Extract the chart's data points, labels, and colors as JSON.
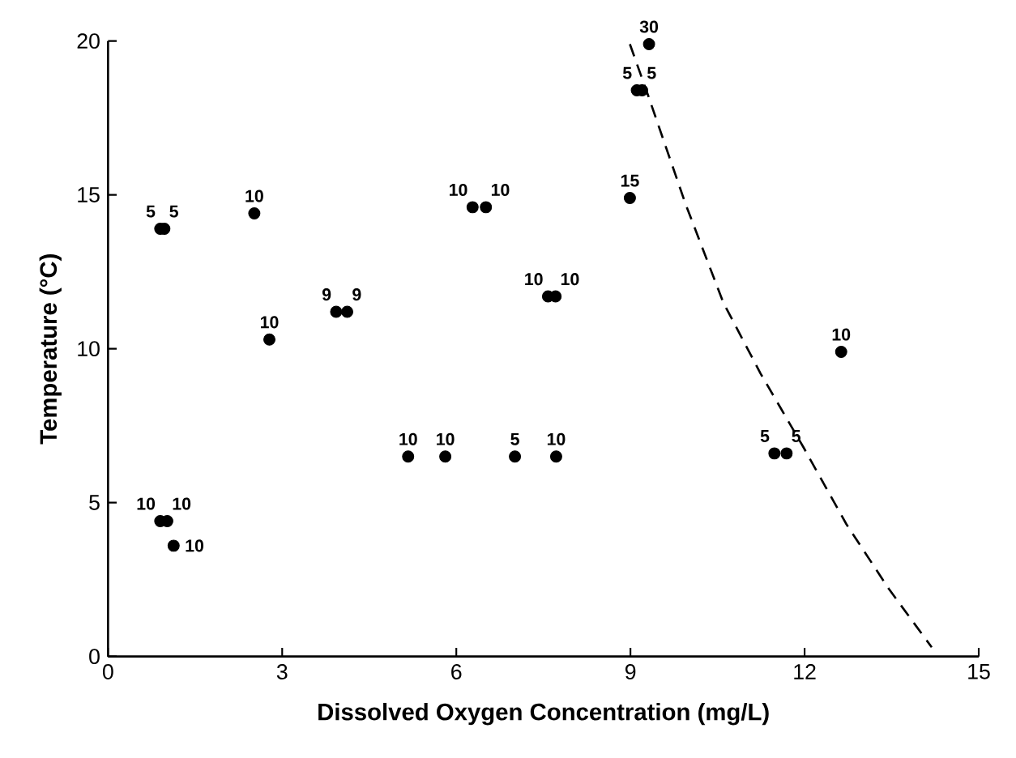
{
  "chart_data": {
    "type": "scatter",
    "xlabel": "Dissolved Oxygen Concentration (mg/L)",
    "ylabel": "Temperature (°C)",
    "xlim": [
      0,
      15
    ],
    "xticks": [
      0,
      3,
      6,
      9,
      12,
      15
    ],
    "ylim": [
      0,
      20
    ],
    "yticks": [
      0,
      5,
      10,
      15,
      20
    ],
    "grid": false,
    "series": [
      {
        "color": "#000000",
        "marker": "circle",
        "x": [
          0.9,
          0.97,
          2.52,
          2.78,
          3.93,
          4.12,
          6.28,
          6.51,
          7.58,
          7.71,
          9.32,
          9.11,
          9.2,
          8.99,
          12.63,
          0.9,
          1.02,
          1.13,
          5.17,
          5.81,
          7.01,
          7.72,
          11.48,
          11.69
        ],
        "values": [
          13.9,
          13.9,
          14.4,
          10.3,
          11.2,
          11.2,
          14.6,
          14.6,
          11.7,
          11.7,
          19.9,
          18.4,
          18.4,
          14.9,
          9.9,
          4.4,
          4.4,
          3.6,
          6.5,
          6.5,
          6.5,
          6.5,
          6.6,
          6.6
        ]
      },
      {
        "type": "line",
        "color": "#000000",
        "line_style": "dashed",
        "marker": "none",
        "x": [
          8.99,
          9.31,
          9.95,
          10.6,
          11.24,
          11.98,
          12.72,
          13.45,
          14.19
        ],
        "values": [
          19.9,
          18.2,
          14.7,
          11.5,
          9.2,
          6.8,
          4.3,
          2.2,
          0.3
        ]
      }
    ],
    "annotations": [
      {
        "text": "5",
        "x": 0.9,
        "y": 13.9
      },
      {
        "text": "5",
        "x": 0.97,
        "y": 13.9
      },
      {
        "text": "10",
        "x": 2.52,
        "y": 14.4
      },
      {
        "text": "10",
        "x": 2.78,
        "y": 10.3
      },
      {
        "text": "9",
        "x": 3.93,
        "y": 11.2
      },
      {
        "text": "9",
        "x": 4.12,
        "y": 11.2
      },
      {
        "text": "10",
        "x": 6.28,
        "y": 14.6
      },
      {
        "text": "10",
        "x": 6.51,
        "y": 14.6
      },
      {
        "text": "10",
        "x": 7.58,
        "y": 11.7
      },
      {
        "text": "10",
        "x": 7.71,
        "y": 11.7
      },
      {
        "text": "30",
        "x": 9.32,
        "y": 19.9
      },
      {
        "text": "5",
        "x": 9.11,
        "y": 18.4
      },
      {
        "text": "5",
        "x": 9.2,
        "y": 18.4
      },
      {
        "text": "15",
        "x": 8.99,
        "y": 14.9
      },
      {
        "text": "10",
        "x": 12.63,
        "y": 9.9
      },
      {
        "text": "10",
        "x": 0.9,
        "y": 4.4
      },
      {
        "text": "10",
        "x": 1.02,
        "y": 4.4
      },
      {
        "text": "10",
        "x": 1.13,
        "y": 3.6
      },
      {
        "text": "10",
        "x": 5.17,
        "y": 6.5
      },
      {
        "text": "10",
        "x": 5.81,
        "y": 6.5
      },
      {
        "text": "5",
        "x": 7.01,
        "y": 6.5
      },
      {
        "text": "10",
        "x": 7.72,
        "y": 6.5
      },
      {
        "text": "5",
        "x": 11.48,
        "y": 6.6
      },
      {
        "text": "5",
        "x": 11.69,
        "y": 6.6
      }
    ]
  }
}
